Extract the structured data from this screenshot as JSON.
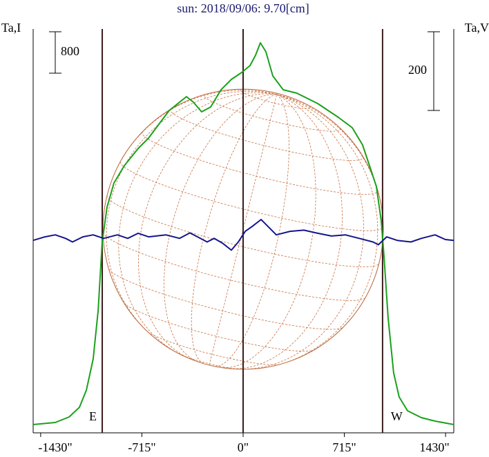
{
  "chart_data": {
    "type": "line",
    "title": "sun: 2018/09/06: 9.70[cm]",
    "ylabel": "Ta,I",
    "y2label": "Ta,V",
    "xlim": [
      -1483,
      1488
    ],
    "ylim": [
      -160,
      7640
    ],
    "y2lim": [
      -489,
      537
    ],
    "xticks": [
      {
        "value": -1430,
        "label": "-1430\""
      },
      {
        "value": -715,
        "label": "-715\""
      },
      {
        "value": 0,
        "label": "0\""
      },
      {
        "value": 715,
        "label": "715\""
      },
      {
        "value": 1430,
        "label": "1430\""
      }
    ],
    "markers": [
      {
        "x": -995,
        "label": "E"
      },
      {
        "x": 0
      },
      {
        "x": 985,
        "label": "W"
      }
    ],
    "scale_bars": [
      {
        "value": 800,
        "axis": "y"
      },
      {
        "value": 200,
        "axis": "y2"
      }
    ],
    "series": [
      {
        "color": "#1aa01a",
        "axis": "y",
        "x": [
          -1483,
          -1327,
          -1229,
          -1156,
          -1107,
          -1059,
          -1024,
          -995,
          -961,
          -912,
          -839,
          -741,
          -668,
          -595,
          -522,
          -400,
          -351,
          -293,
          -229,
          -156,
          -83,
          -10,
          49,
          88,
          122,
          161,
          210,
          283,
          380,
          527,
          673,
          771,
          844,
          893,
          941,
          976,
          995,
          1024,
          1063,
          1102,
          1161,
          1259,
          1356,
          1488
        ],
        "values": [
          0,
          40,
          147,
          333,
          667,
          1267,
          2200,
          3533,
          4200,
          4667,
          5000,
          5333,
          5533,
          5800,
          6067,
          6333,
          6227,
          6040,
          6133,
          6467,
          6667,
          6800,
          6933,
          7133,
          7373,
          7200,
          6733,
          6467,
          6400,
          6200,
          5933,
          5733,
          5400,
          5000,
          4600,
          3933,
          3267,
          2067,
          1000,
          533,
          267,
          133,
          67,
          0
        ]
      },
      {
        "color": "#14148c",
        "axis": "y2",
        "x": [
          -1483,
          -1400,
          -1327,
          -1254,
          -1205,
          -1132,
          -1059,
          -985,
          -888,
          -815,
          -741,
          -668,
          -546,
          -449,
          -376,
          -302,
          -254,
          -205,
          -146,
          -83,
          -34,
          15,
          63,
          127,
          185,
          234,
          332,
          429,
          527,
          624,
          722,
          820,
          917,
          956,
          1014,
          1088,
          1185,
          1259,
          1356,
          1429,
          1488
        ],
        "values": [
          0,
          9,
          14,
          5,
          -4,
          9,
          14,
          5,
          14,
          5,
          18,
          9,
          14,
          5,
          19,
          5,
          -4,
          5,
          -7,
          -25,
          -4,
          23,
          35,
          53,
          32,
          14,
          23,
          26,
          18,
          11,
          14,
          5,
          -4,
          -11,
          9,
          0,
          -4,
          5,
          14,
          2,
          0
        ]
      }
    ]
  }
}
